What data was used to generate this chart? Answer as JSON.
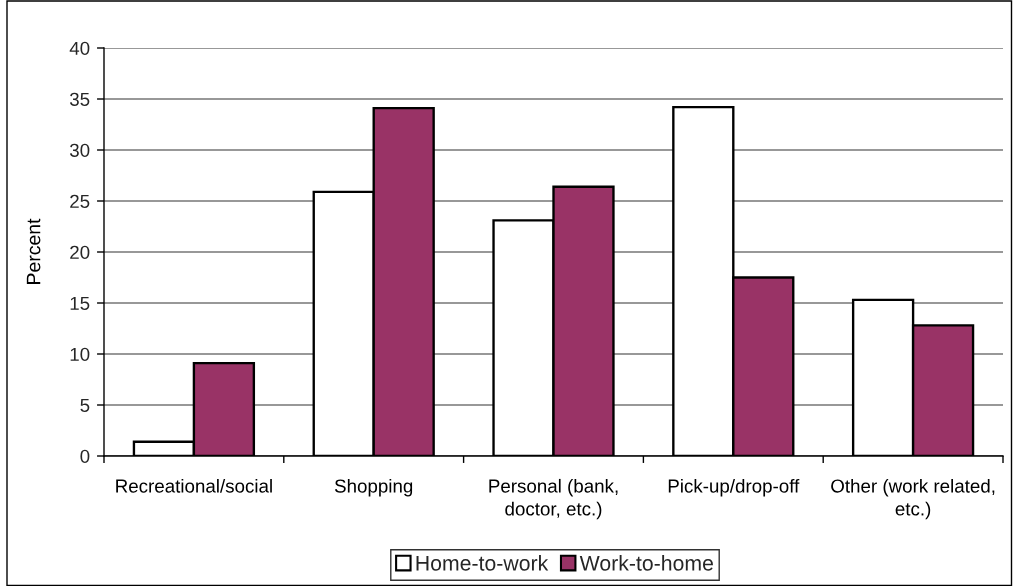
{
  "chart_data": {
    "type": "bar",
    "ylabel": "Percent",
    "categories": [
      "Recreational/social",
      "Shopping",
      "Personal (bank, doctor, etc.)",
      "Pick-up/drop-off",
      "Other (work related, etc.)"
    ],
    "series": [
      {
        "name": "Home-to-work",
        "color": "#ffffff",
        "values": [
          1.4,
          25.9,
          23.1,
          34.2,
          15.3
        ]
      },
      {
        "name": "Work-to-home",
        "color": "#993366",
        "values": [
          9.1,
          34.1,
          26.4,
          17.5,
          12.8
        ]
      }
    ],
    "ylim": [
      0,
      40
    ],
    "yticks": [
      0,
      5,
      10,
      15,
      20,
      25,
      30,
      35,
      40
    ],
    "grid": "y",
    "legend": "bottom"
  }
}
